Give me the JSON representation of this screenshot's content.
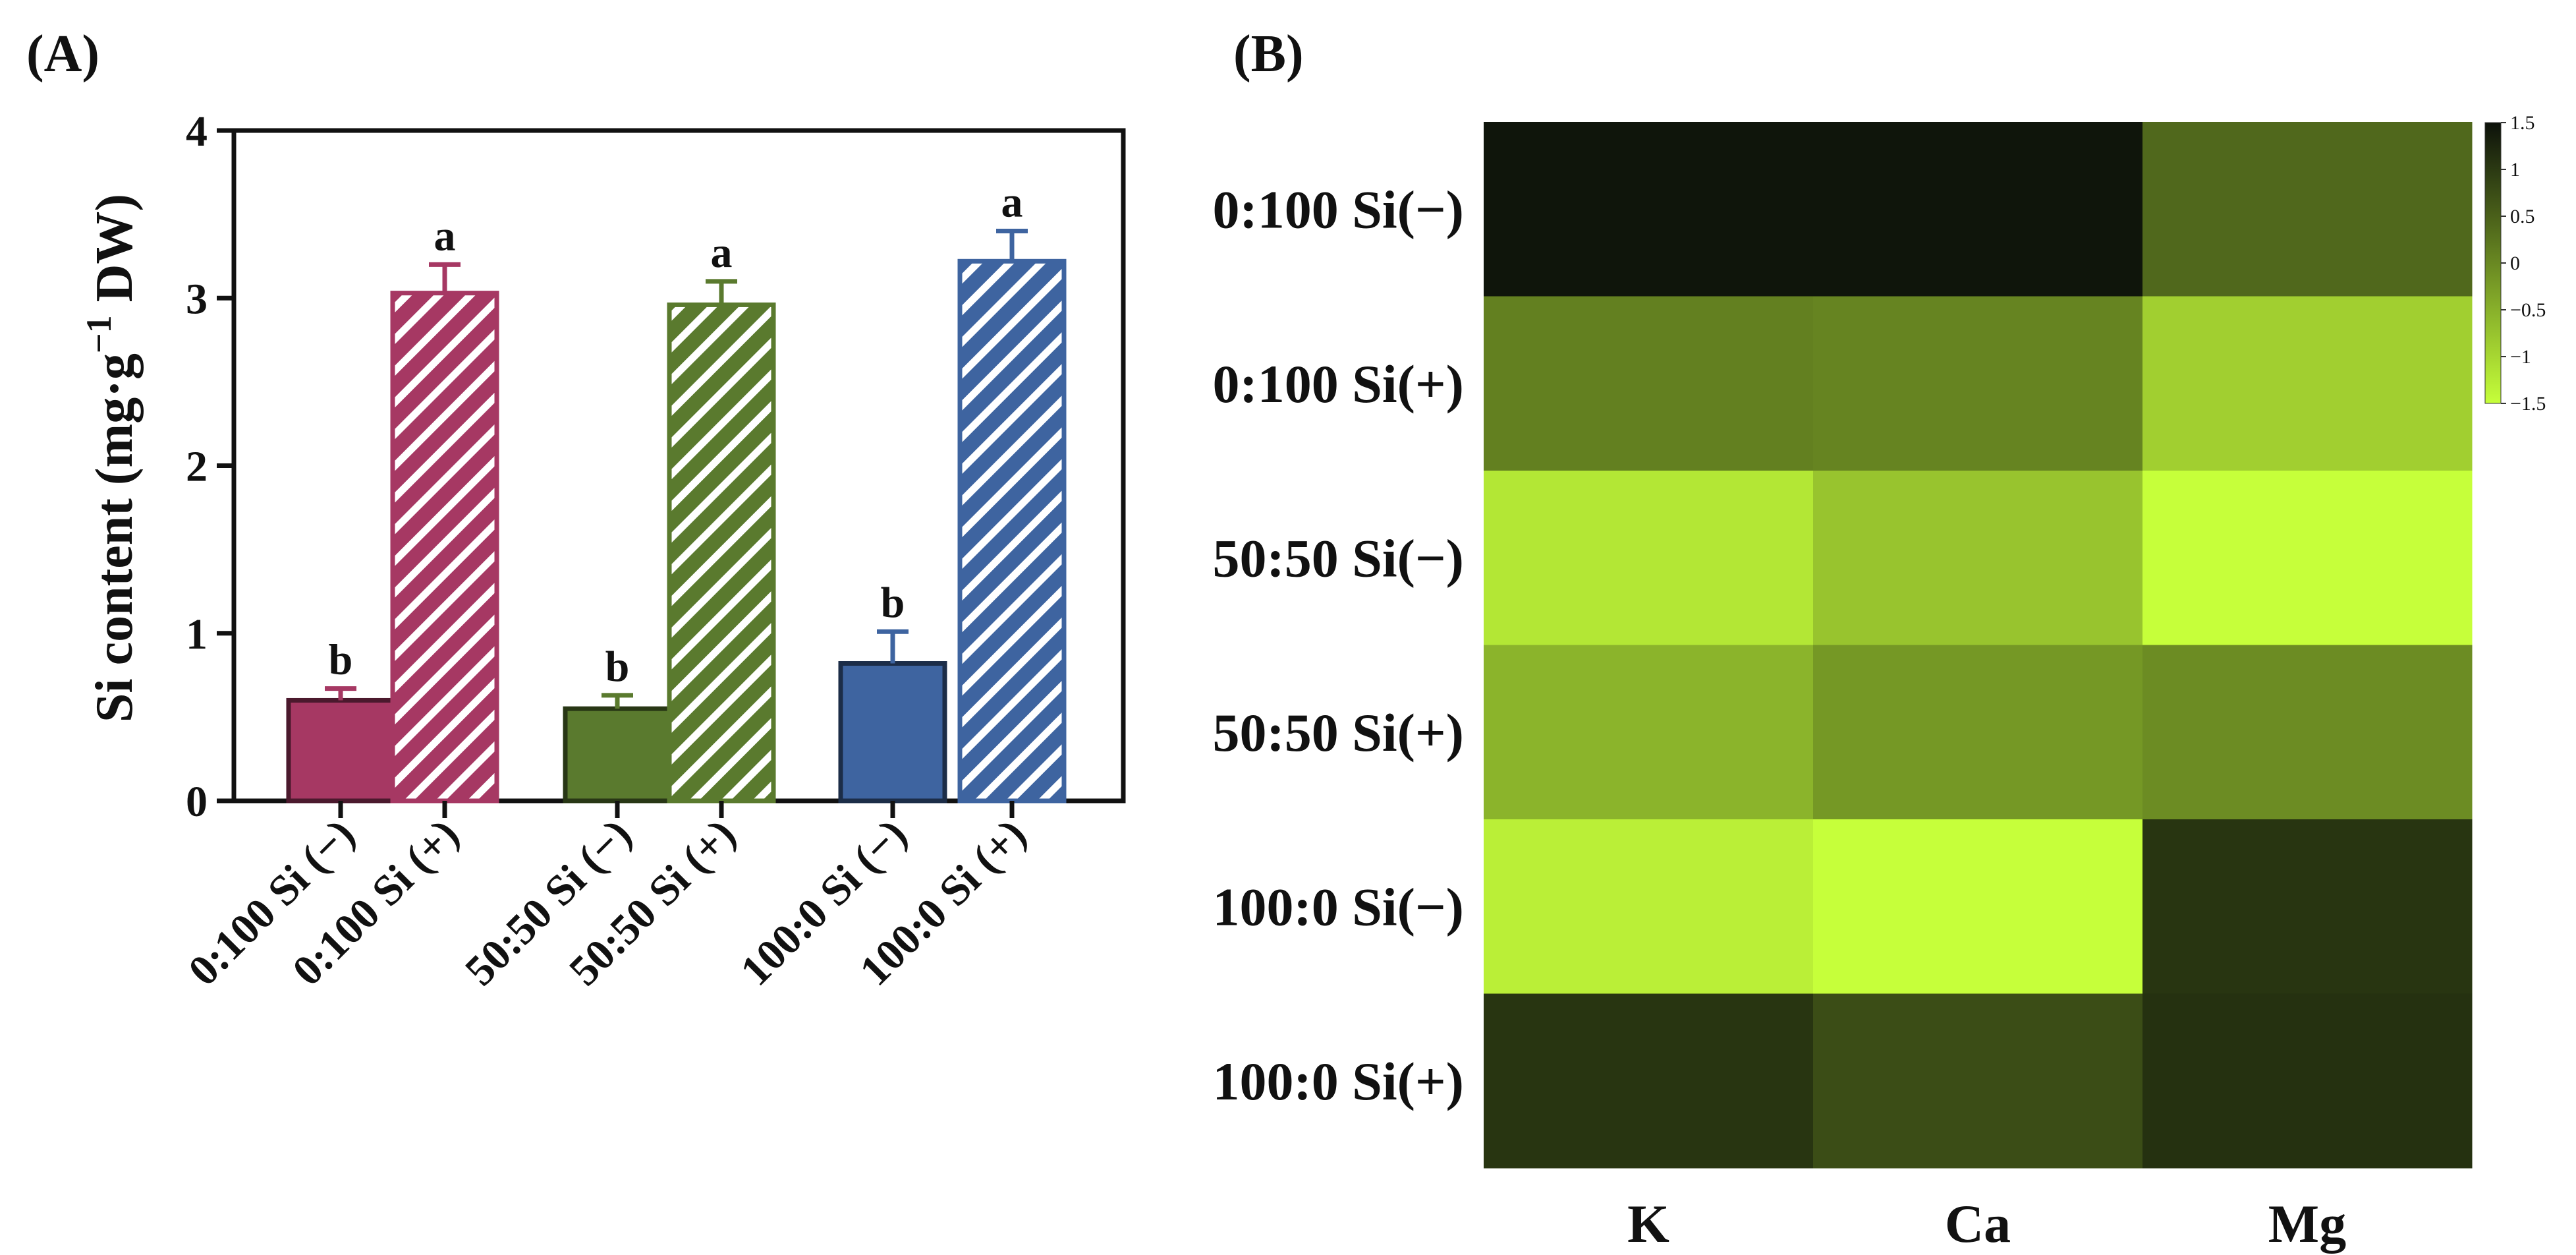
{
  "panel_a_label": "(A)",
  "panel_b_label": "(B)",
  "chart_data": [
    {
      "type": "bar",
      "panel": "(A)",
      "ylabel": "Si content (mg·g",
      "ylabel_sup": "−1",
      "ylabel_tail": " DW)",
      "ylim": [
        0,
        4
      ],
      "yticks": [
        "0",
        "1",
        "2",
        "3",
        "4"
      ],
      "categories": [
        "0:100 Si (−)",
        "0:100 Si (+)",
        "50:50 Si (−)",
        "50:50 Si (+)",
        "100:0 Si (−)",
        "100:0 Si (+)"
      ],
      "values": [
        0.6,
        3.03,
        0.55,
        2.96,
        0.82,
        3.22
      ],
      "errors": [
        0.07,
        0.17,
        0.08,
        0.14,
        0.19,
        0.18
      ],
      "significance": [
        "b",
        "a",
        "b",
        "a",
        "b",
        "a"
      ],
      "colors": [
        "#A63863",
        "#A63863",
        "#5A7A2E",
        "#5A7A2E",
        "#3E64A0",
        "#3E64A0"
      ],
      "hatched": [
        false,
        true,
        false,
        true,
        false,
        true
      ]
    },
    {
      "type": "heatmap",
      "panel": "(B)",
      "rows": [
        "0:100 Si(−)",
        "0:100 Si(+)",
        "50:50 Si(−)",
        "50:50 Si(+)",
        "100:0 Si(−)",
        "100:0 Si(+)"
      ],
      "columns": [
        "K",
        "Ca",
        "Mg"
      ],
      "values": [
        [
          1.45,
          1.45,
          0.4
        ],
        [
          0.1,
          0.05,
          -0.9
        ],
        [
          -1.2,
          -0.75,
          -1.55
        ],
        [
          -0.55,
          -0.2,
          -0.05
        ],
        [
          -1.3,
          -1.6,
          1.05
        ],
        [
          1.05,
          0.75,
          1.1
        ]
      ],
      "colorbar_ticks": [
        "1.5",
        "1",
        "0.5",
        "0",
        "−0.5",
        "−1",
        "−1.5"
      ],
      "colorbar_range": [
        -1.5,
        1.5
      ],
      "color_low": "#C6FF3A",
      "color_high": "#0C110A"
    }
  ]
}
